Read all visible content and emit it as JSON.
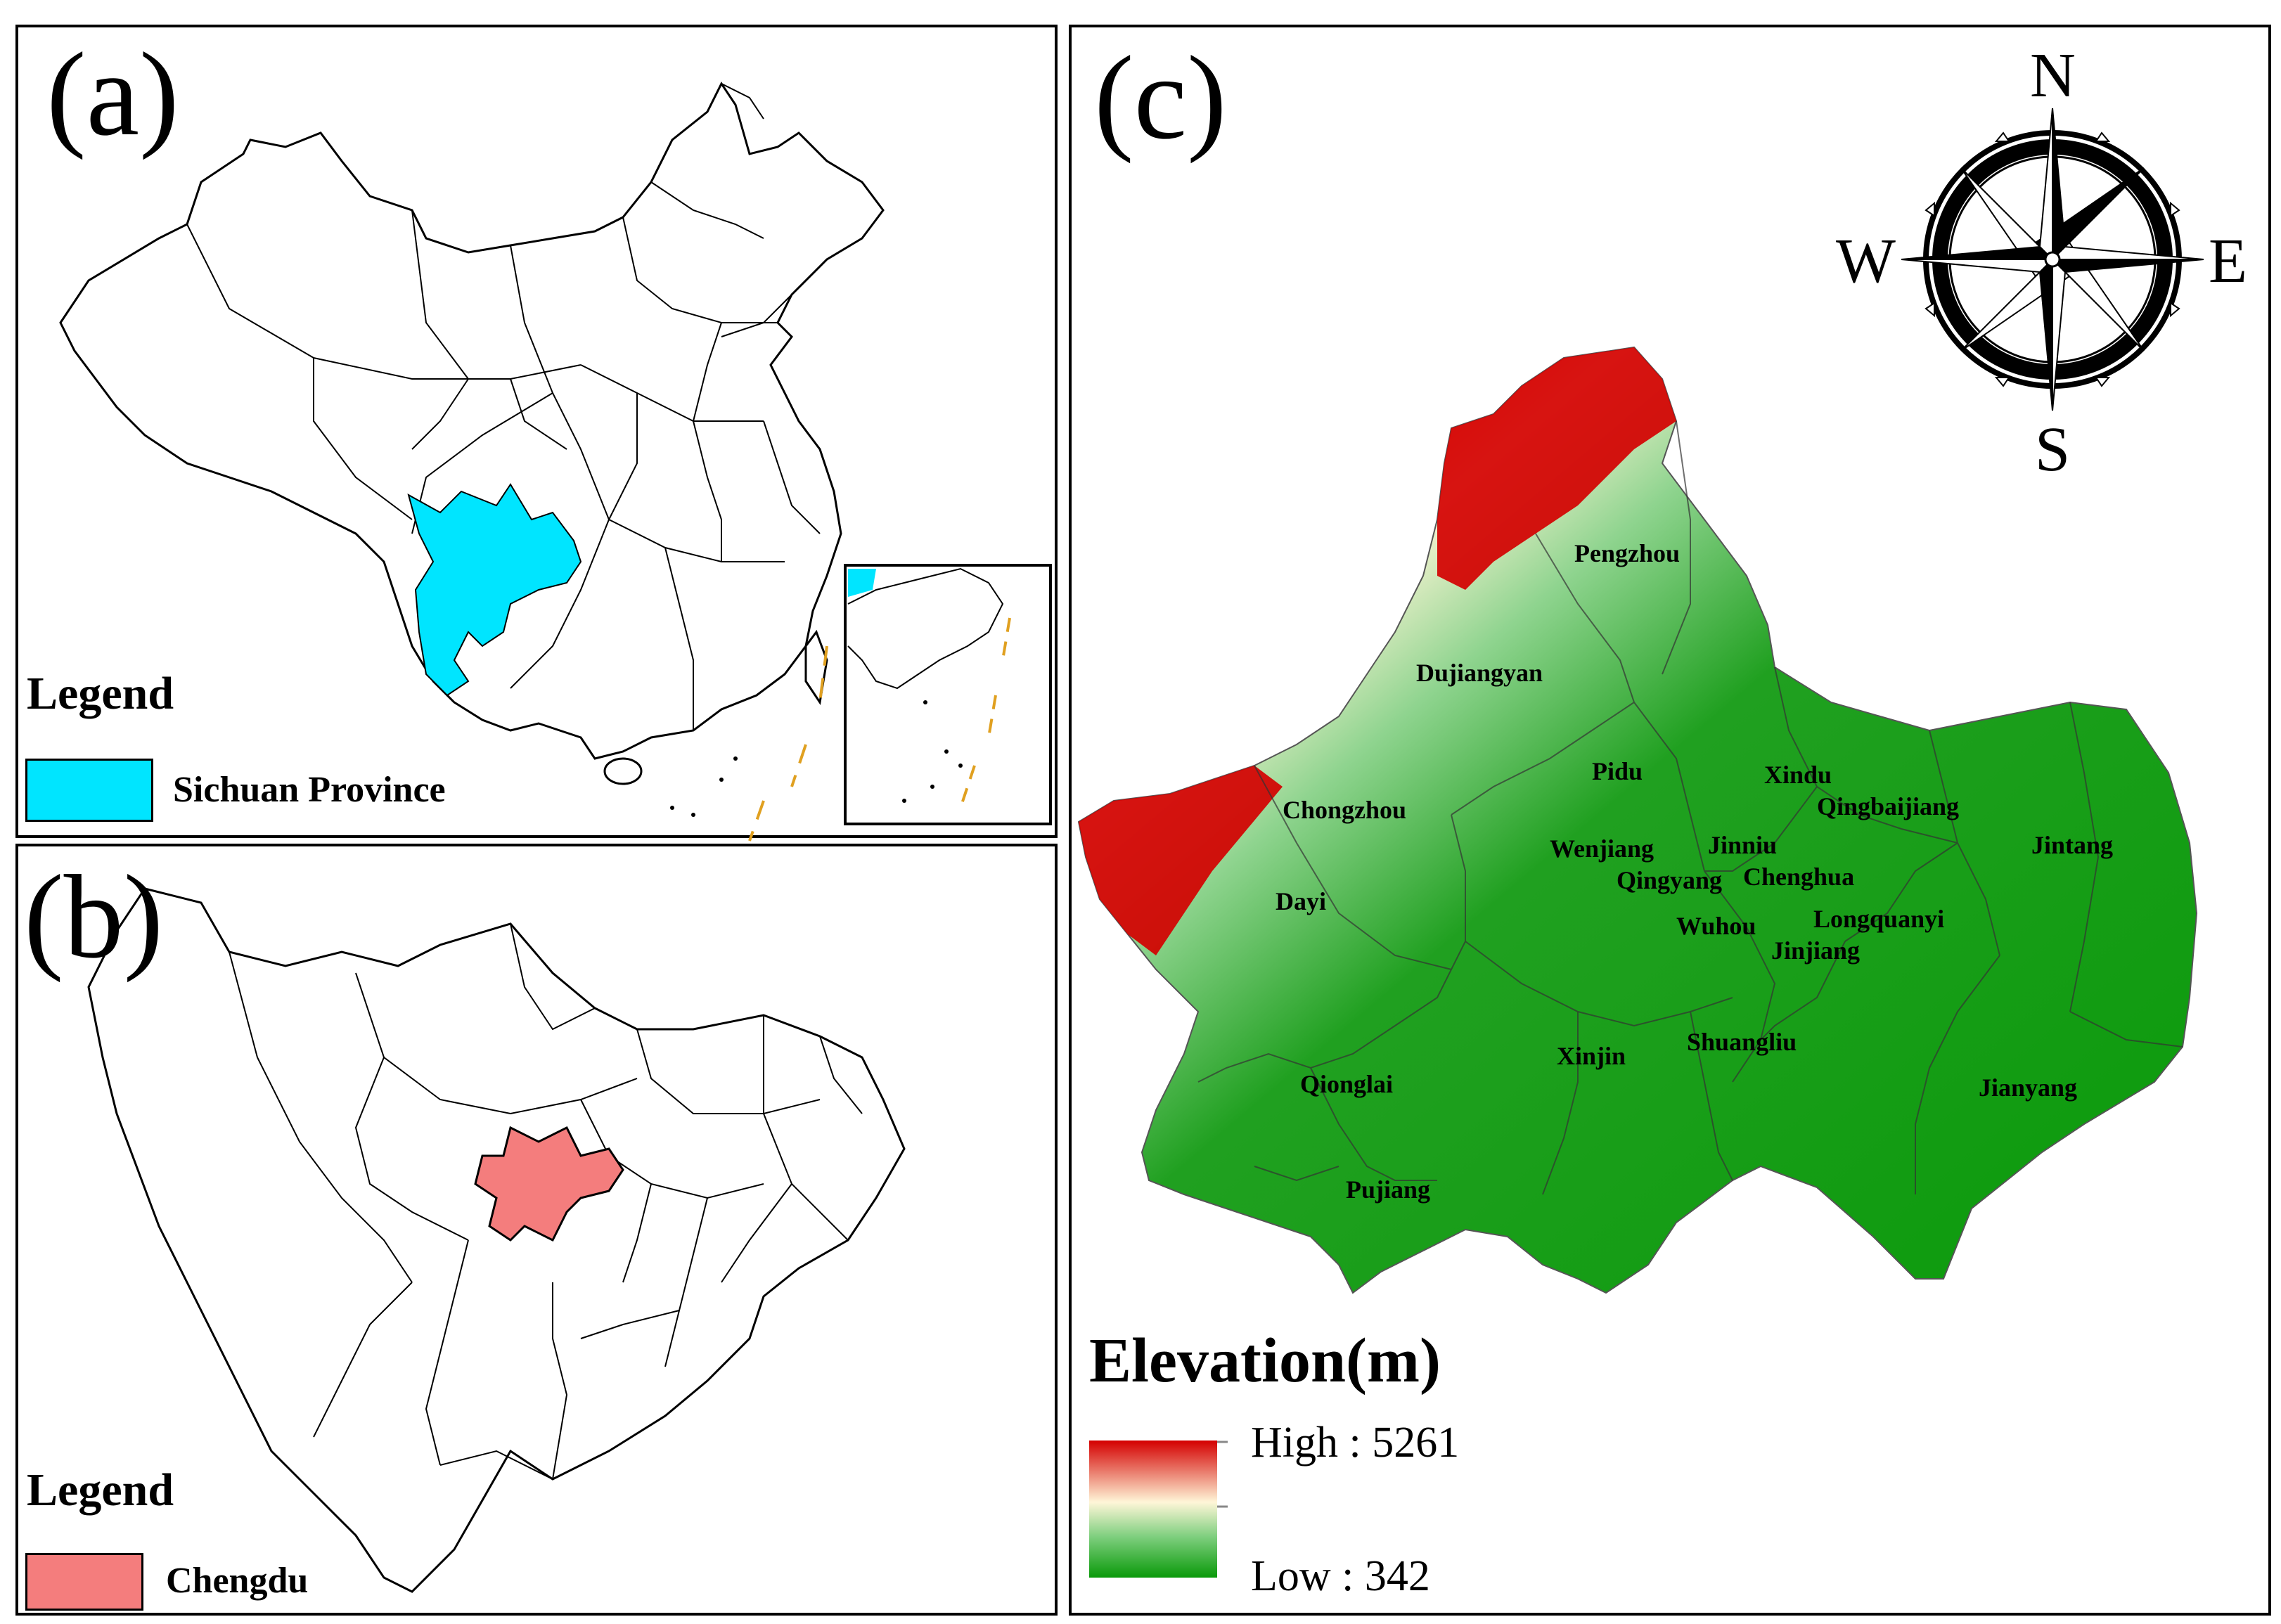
{
  "panels": {
    "a": {
      "letter": "(a)",
      "legend_title": "Legend",
      "legend_label": "Sichuan Province",
      "highlight_color": "#00e5ff"
    },
    "b": {
      "letter": "(b)",
      "legend_title": "Legend",
      "legend_label": "Chengdu",
      "highlight_color": "#f47d7d"
    },
    "c": {
      "letter": "(c)",
      "compass": {
        "north": "N",
        "south": "S",
        "east": "E",
        "west": "W"
      },
      "legend_title": "Elevation(m)",
      "high_label": "High : 5261",
      "low_label": "Low : 342",
      "colors": {
        "high": "#d40000",
        "mid": "#fff6d8",
        "low": "#0a9a0a"
      },
      "districts": [
        "Pengzhou",
        "Dujiangyan",
        "Pidu",
        "Xindu",
        "Qingbaijiang",
        "Chongzhou",
        "Wenjiang",
        "Jinniu",
        "Jintang",
        "Qingyang",
        "Chenghua",
        "Dayi",
        "Wuhou",
        "Longquanyi",
        "Jinjiang",
        "Qionglai",
        "Xinjin",
        "Shuangliu",
        "Jianyang",
        "Pujiang"
      ]
    }
  }
}
